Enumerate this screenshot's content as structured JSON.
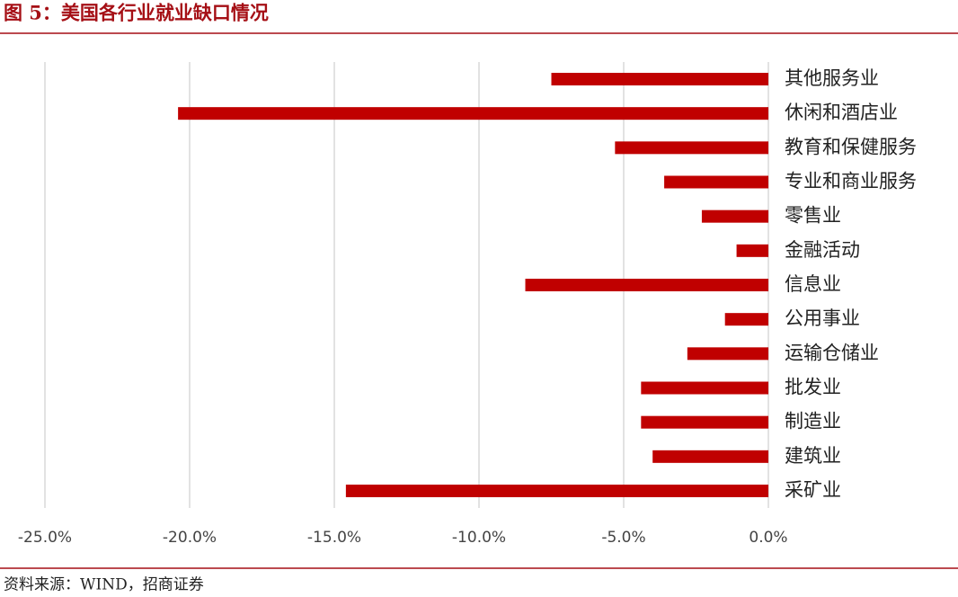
{
  "chart_data": {
    "type": "bar",
    "orientation": "horizontal",
    "title": "图 5：美国各行业就业缺口情况",
    "source": "资料来源：WIND，招商证券",
    "categories": [
      "其他服务业",
      "休闲和酒店业",
      "教育和保健服务",
      "专业和商业服务",
      "零售业",
      "金融活动",
      "信息业",
      "公用事业",
      "运输仓储业",
      "批发业",
      "制造业",
      "建筑业",
      "采矿业"
    ],
    "values": [
      -7.5,
      -20.4,
      -5.3,
      -3.6,
      -2.3,
      -1.1,
      -8.4,
      -1.5,
      -2.8,
      -4.4,
      -4.4,
      -4.0,
      -14.6
    ],
    "color": "#c00000",
    "xlim": [
      -25,
      0
    ],
    "xticks": [
      {
        "value": -25,
        "label": "-25.0%"
      },
      {
        "value": -20,
        "label": "-20.0%"
      },
      {
        "value": -15,
        "label": "-15.0%"
      },
      {
        "value": -10,
        "label": "-10.0%"
      },
      {
        "value": -5,
        "label": "-5.0%"
      },
      {
        "value": 0,
        "label": "0.0%"
      }
    ],
    "grid": true
  }
}
